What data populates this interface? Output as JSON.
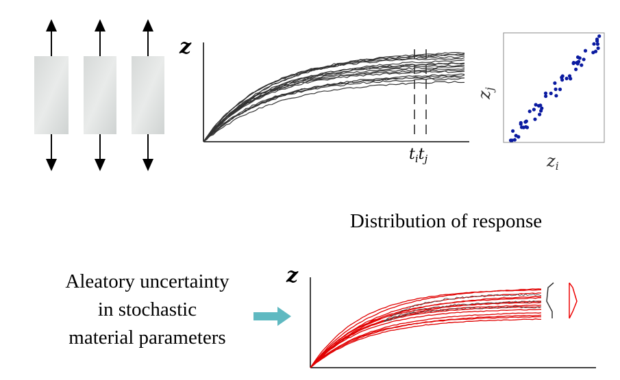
{
  "response_plot": {
    "y_label": "z",
    "time_marks": [
      {
        "symbol": "t",
        "index": "i"
      },
      {
        "symbol": "t",
        "index": "j"
      }
    ]
  },
  "scatter_plot": {
    "y_label": {
      "symbol": "z",
      "index": "j"
    },
    "x_label": {
      "symbol": "z",
      "index": "i"
    }
  },
  "caption": "Distribution of response",
  "input_label": [
    "Aleatory uncertainty",
    "in stochastic",
    "material parameters"
  ],
  "output_plot": {
    "y_label": "z"
  }
}
